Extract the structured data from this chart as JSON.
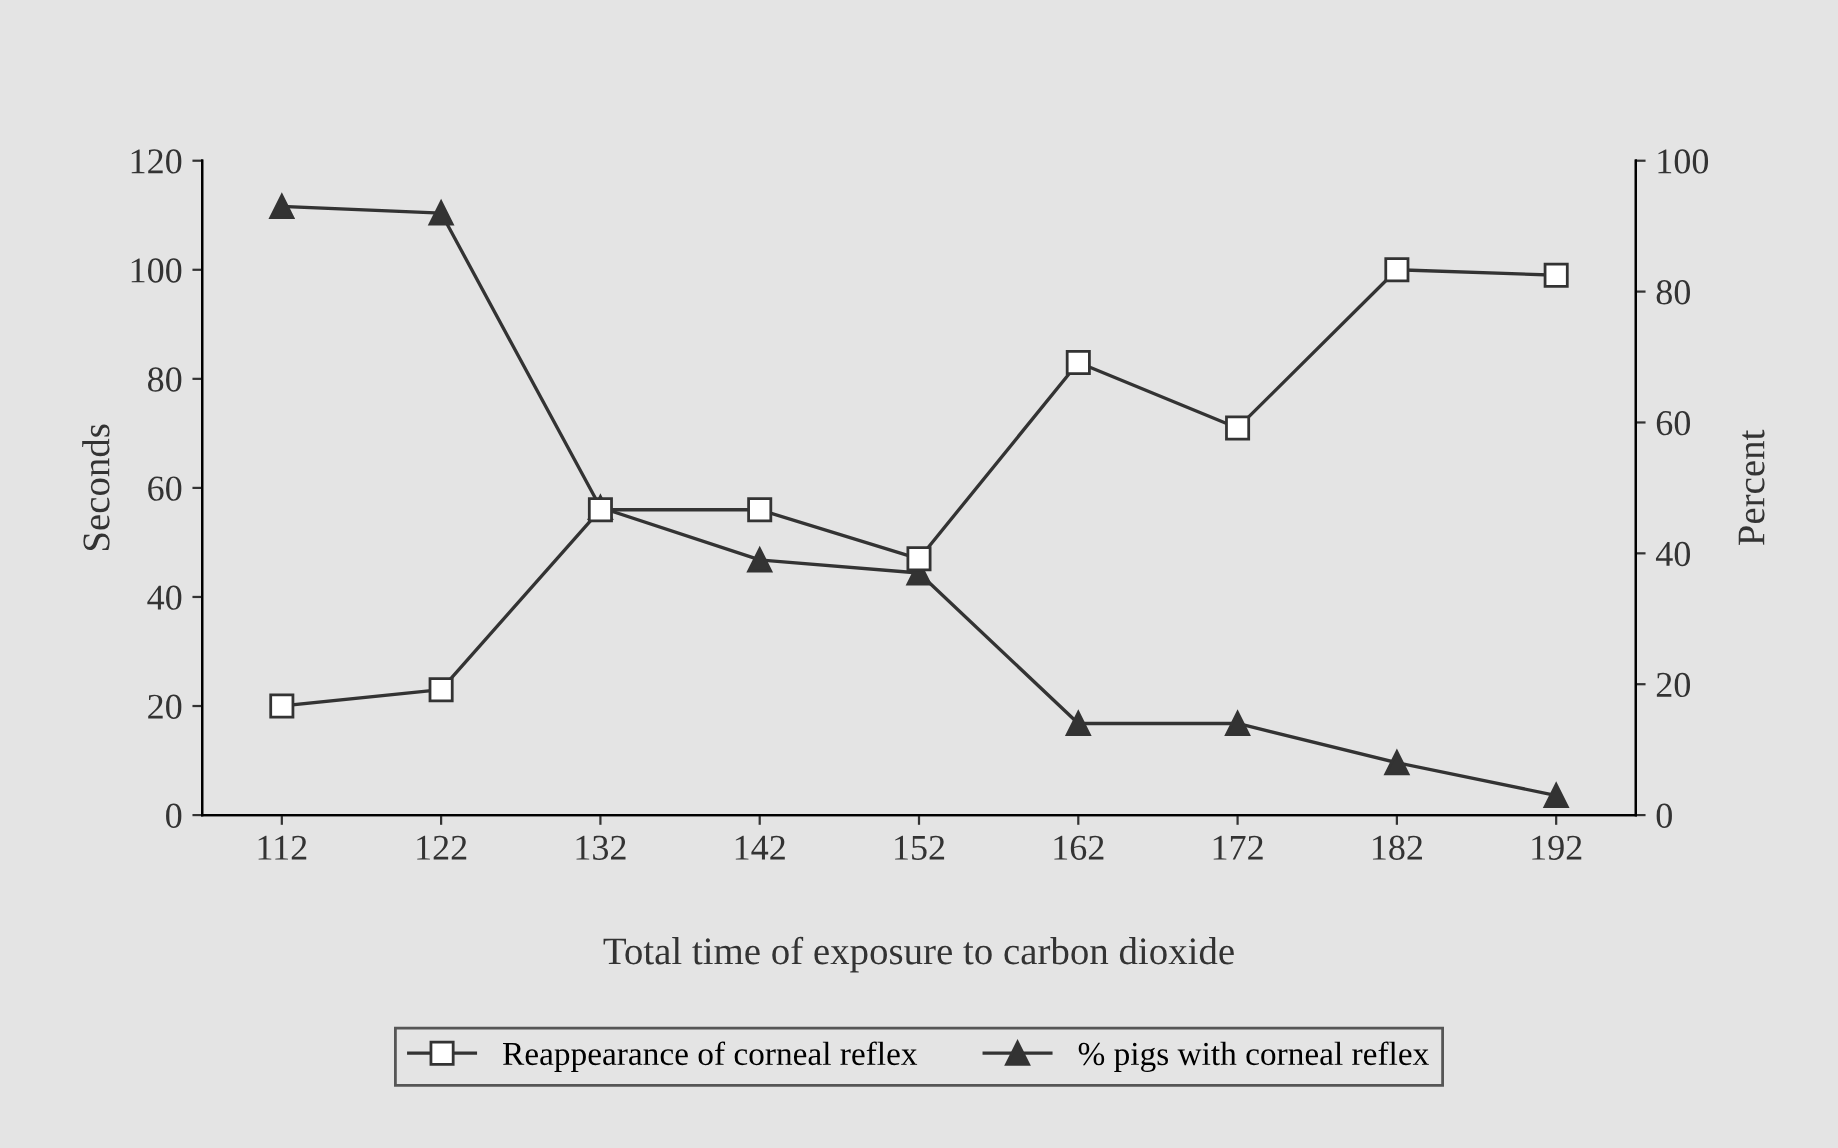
{
  "chart_data": {
    "type": "line",
    "xlabel": "Total time of exposure to carbon dioxide",
    "ylabel": "Seconds",
    "y2label": "Percent",
    "categories": [
      "112",
      "122",
      "132",
      "142",
      "152",
      "162",
      "172",
      "182",
      "192"
    ],
    "series": [
      {
        "name": "Reappearance of corneal reflex",
        "color": "#333333",
        "marker": "square",
        "values": [
          20,
          23,
          56,
          56,
          47,
          83,
          71,
          100,
          99
        ]
      },
      {
        "name": "% pigs with corneal reflex",
        "color": "#333333",
        "marker": "triangle",
        "axis": "y2",
        "values": [
          93,
          92,
          47,
          39,
          37,
          14,
          14,
          8,
          3
        ]
      }
    ],
    "ylim": [
      0,
      120
    ],
    "yticks": [
      0,
      20,
      40,
      60,
      80,
      100,
      120
    ],
    "y2lim": [
      0,
      100
    ],
    "y2ticks": [
      0,
      20,
      40,
      60,
      80,
      100
    ],
    "grid": false,
    "legend": "bottom",
    "line_style": "solid"
  }
}
